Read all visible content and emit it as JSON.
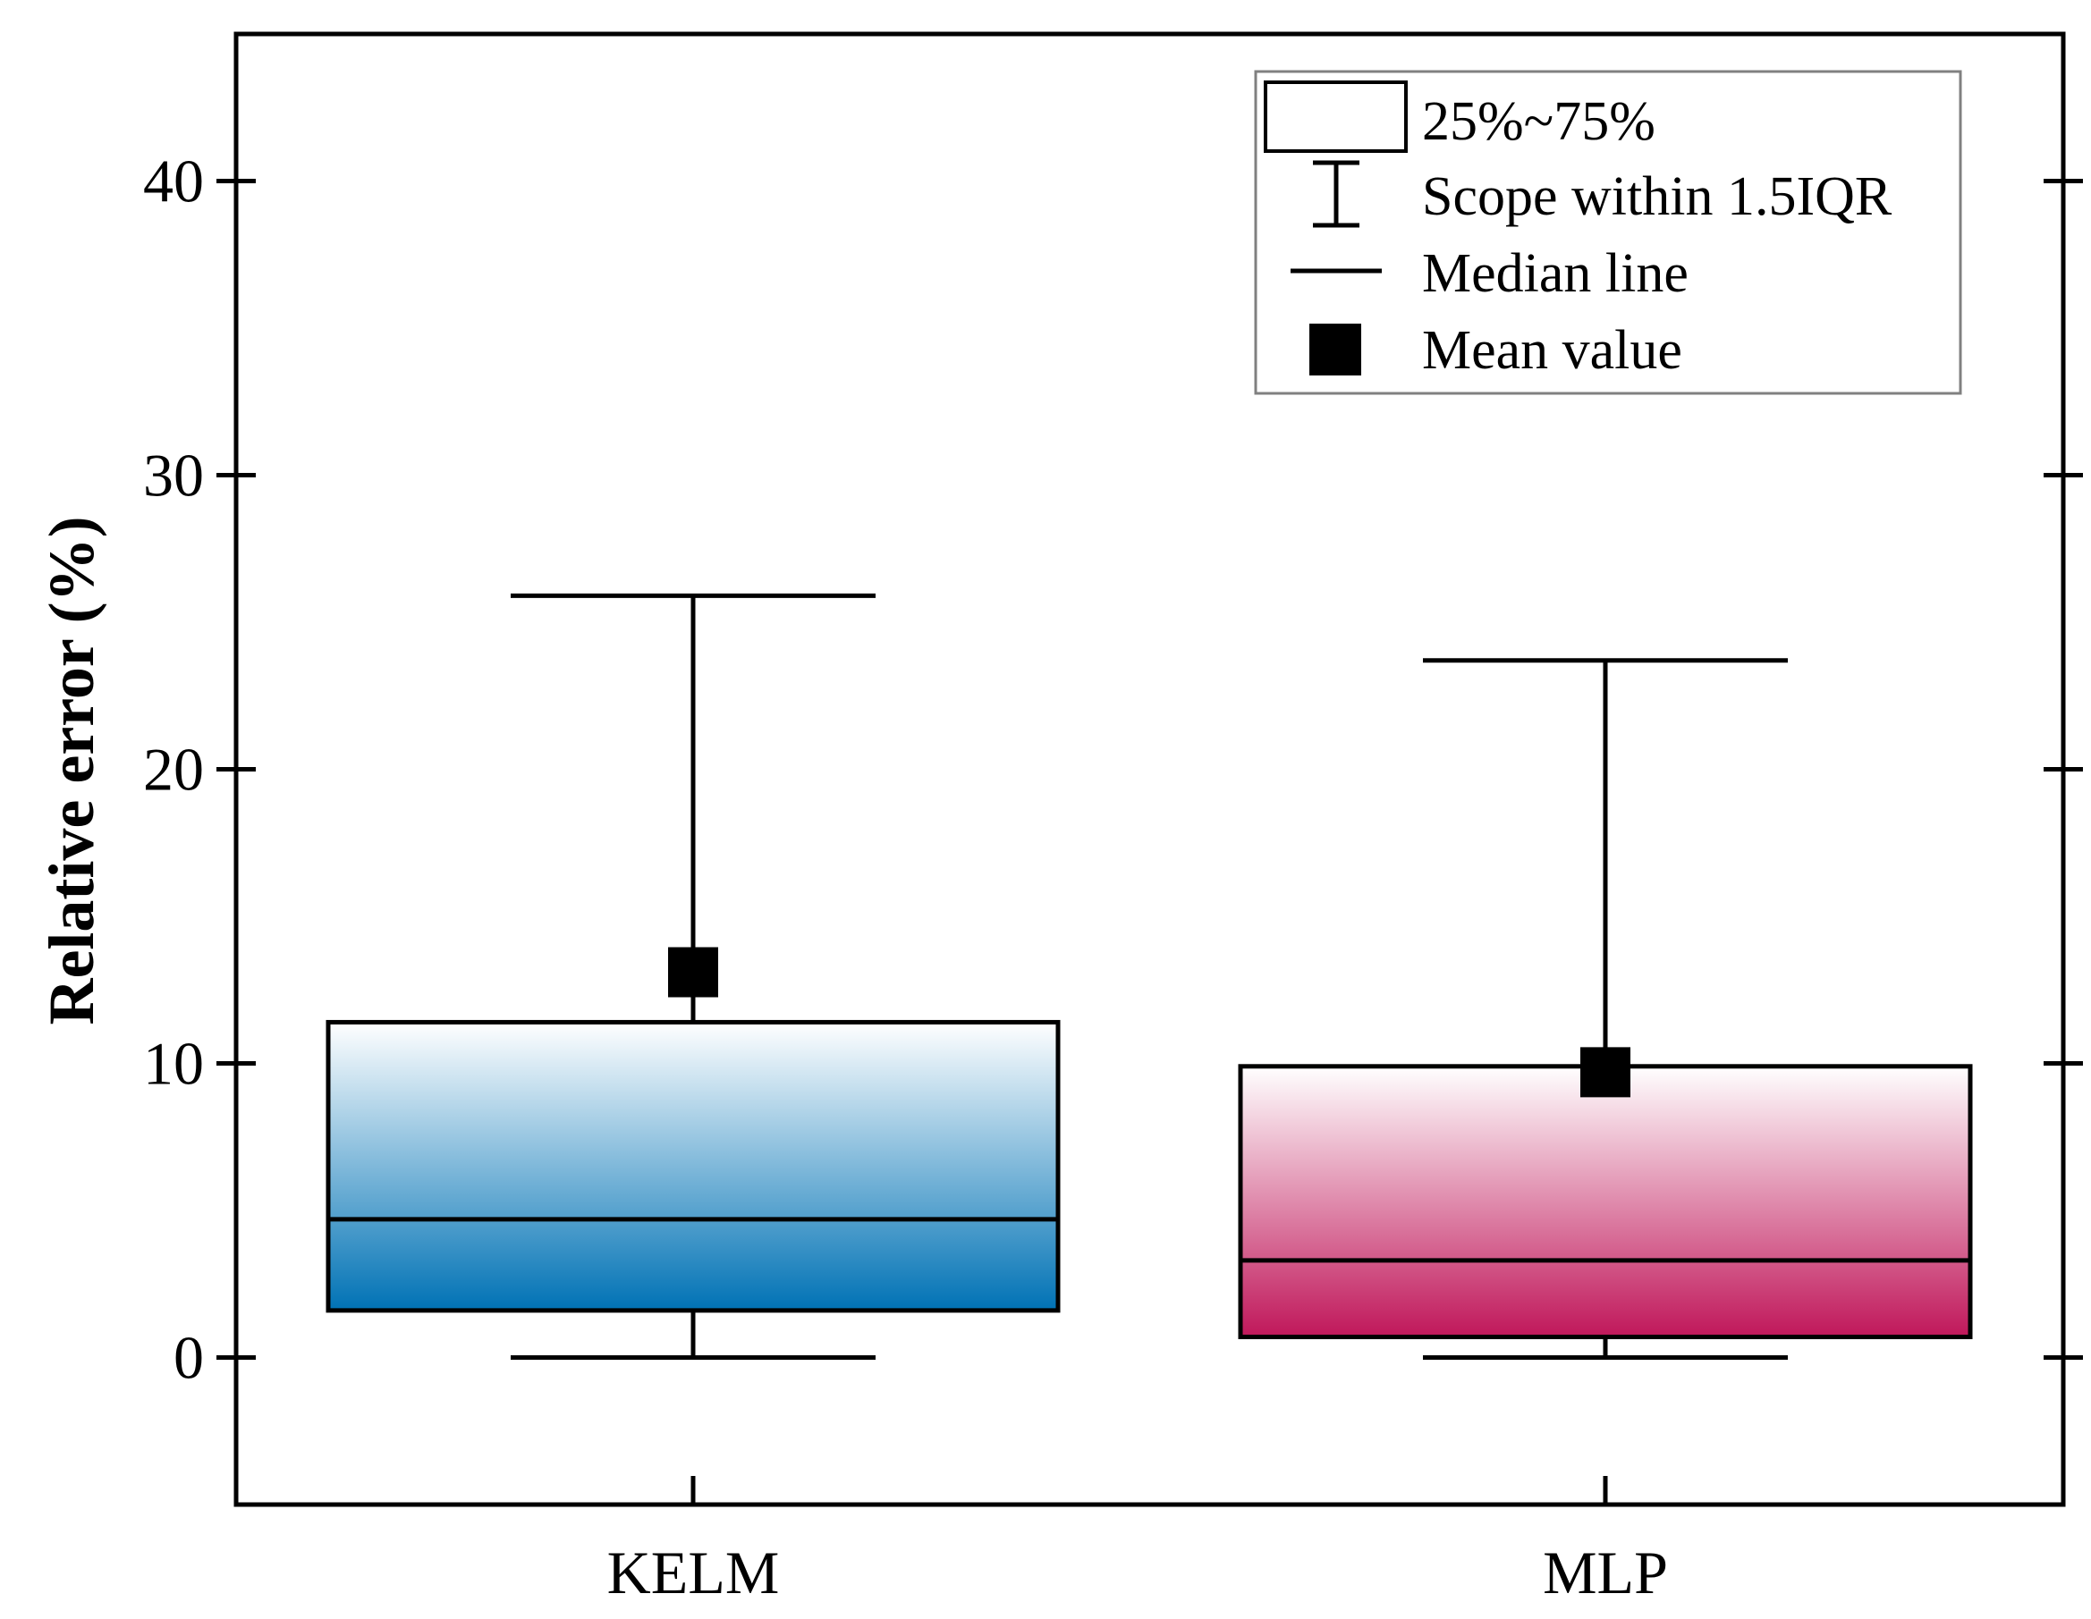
{
  "chart_data": {
    "type": "box",
    "title": "",
    "xlabel": "",
    "ylabel": "Relative error (%)",
    "ylim": [
      -5,
      45
    ],
    "yticks": [
      0,
      10,
      20,
      30,
      40
    ],
    "ytick_labels": [
      "0",
      "10",
      "20",
      "30",
      "40"
    ],
    "categories": [
      "KELM",
      "MLP"
    ],
    "series": [
      {
        "category": "KELM",
        "whisker_low": 0,
        "q1": 1.6,
        "median": 4.7,
        "q3": 11.4,
        "whisker_high": 25.9,
        "mean": 13.1,
        "color_light": "#ffffff",
        "color_dark": "#0072b5"
      },
      {
        "category": "MLP",
        "whisker_low": 0,
        "q1": 0.7,
        "median": 3.3,
        "q3": 9.9,
        "whisker_high": 23.7,
        "mean": 9.7,
        "color_light": "#ffffff",
        "color_dark": "#c0175a"
      }
    ],
    "legend": {
      "position": "top-right",
      "items": [
        "25%~75%",
        "Scope within 1.5IQR",
        "Median line",
        "Mean value"
      ]
    }
  }
}
